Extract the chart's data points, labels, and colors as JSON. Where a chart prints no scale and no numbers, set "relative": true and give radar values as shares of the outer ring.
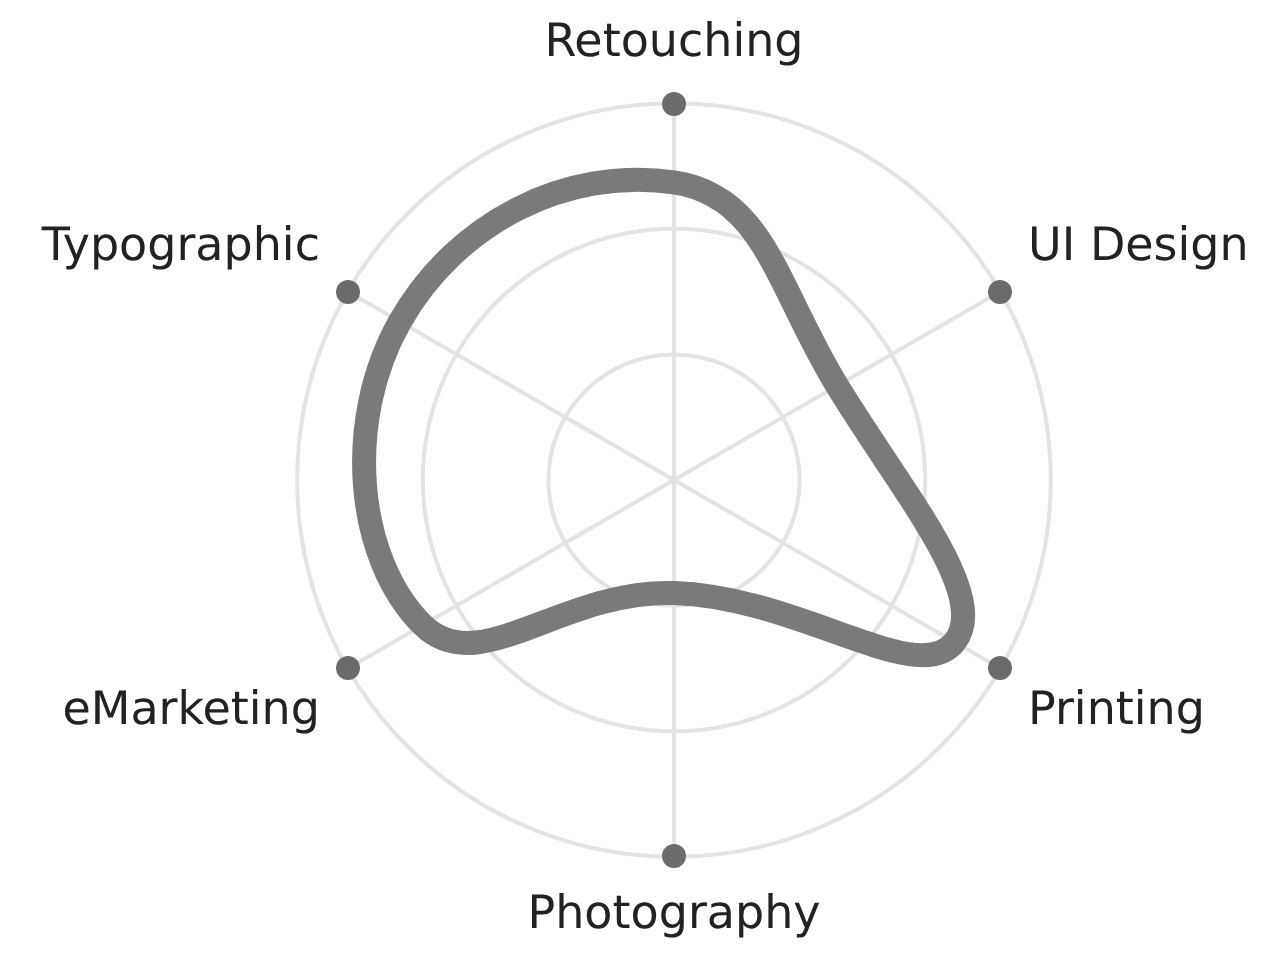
{
  "chart_data": {
    "type": "radar",
    "relative": true,
    "categories": [
      "Retouching",
      "UI Design",
      "Printing",
      "Photography",
      "eMarketing",
      "Typographic"
    ],
    "series": [
      {
        "color": "#7a7a7c",
        "values": [
          0.79,
          0.5,
          0.86,
          0.3,
          0.77,
          0.84
        ]
      }
    ],
    "grid": true,
    "legend": false,
    "marker": "none",
    "line_style": "solid"
  }
}
